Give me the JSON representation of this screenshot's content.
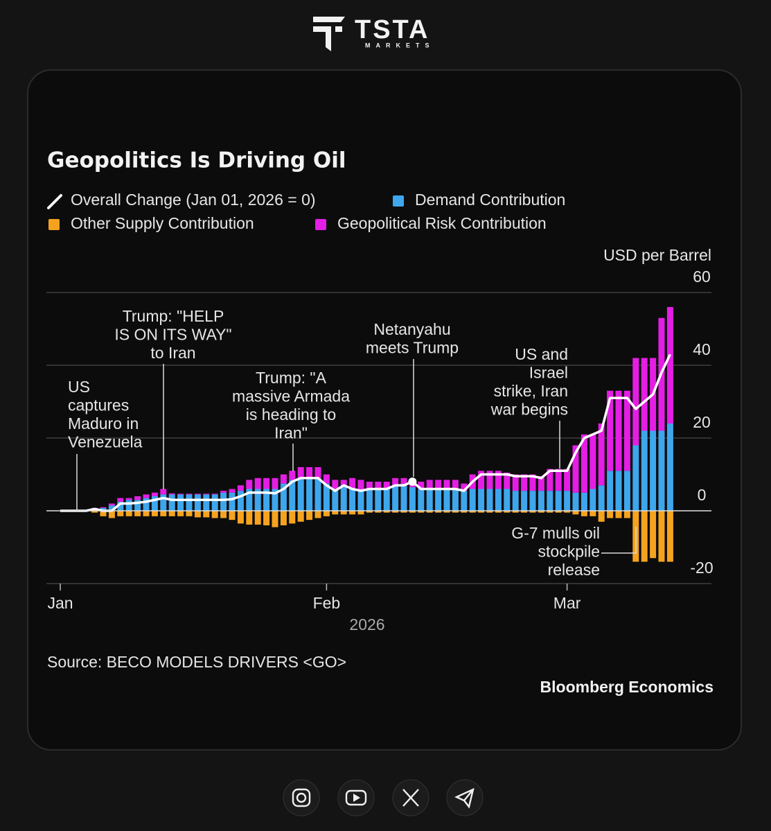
{
  "header": {
    "brand": "TSTA",
    "tagline": "MARKETS"
  },
  "chart_data": {
    "type": "bar",
    "title": "Geopolitics Is Driving Oil",
    "y_axis_label": "USD per Barrel",
    "x_axis_label": "2026",
    "source": "Source: BECO MODELS DRIVERS <GO>",
    "credit": "Bloomberg Economics",
    "stacked": true,
    "grid": true,
    "ylim": [
      -20,
      60
    ],
    "yticks": [
      -20,
      0,
      20,
      40,
      60
    ],
    "categories": [
      "Jan",
      null,
      null,
      null,
      null,
      null,
      null,
      null,
      null,
      null,
      null,
      null,
      null,
      null,
      null,
      null,
      null,
      null,
      null,
      null,
      null,
      null,
      null,
      null,
      null,
      null,
      null,
      null,
      null,
      null,
      null,
      "Feb",
      null,
      null,
      null,
      null,
      null,
      null,
      null,
      null,
      null,
      null,
      null,
      null,
      null,
      null,
      null,
      null,
      null,
      null,
      null,
      null,
      null,
      null,
      null,
      null,
      null,
      null,
      null,
      "Mar",
      null,
      null,
      null,
      null,
      null,
      null,
      null,
      null,
      null,
      null,
      null,
      null
    ],
    "series": [
      {
        "name": "Overall Change (Jan 01, 2026 = 0)",
        "type": "line",
        "color": "#ffffff",
        "values": [
          0,
          0,
          0,
          0,
          0.5,
          0,
          0,
          2,
          2,
          2.2,
          2.5,
          3,
          3.5,
          3,
          3,
          3,
          3,
          3,
          3,
          3,
          3.2,
          4,
          5,
          5,
          5,
          4.8,
          6,
          8,
          9,
          9,
          9,
          7,
          5.5,
          7,
          6,
          5.5,
          6,
          6,
          6,
          7,
          7,
          8,
          6,
          6,
          6,
          6,
          6,
          5.5,
          8,
          10,
          10,
          10,
          10,
          9.5,
          9.5,
          9.5,
          9,
          11,
          11,
          11,
          16,
          20,
          21,
          22,
          31,
          31,
          31,
          28,
          30,
          32,
          38,
          43
        ]
      },
      {
        "name": "Demand Contribution",
        "type": "bar",
        "color": "#3ea6ec",
        "values": [
          0,
          0,
          0,
          0,
          0.5,
          0.8,
          1.5,
          2.5,
          3,
          3,
          3.5,
          4,
          4.5,
          4.5,
          4.5,
          4.5,
          4.5,
          4.5,
          4.5,
          5,
          5,
          5.5,
          6,
          6,
          6,
          6,
          7.5,
          8.5,
          9,
          9,
          9,
          7.5,
          6,
          7,
          6,
          5.5,
          6,
          6,
          6,
          7,
          7,
          6.5,
          6,
          6,
          6,
          6,
          6,
          5.5,
          6,
          6,
          6,
          6,
          6,
          5.5,
          5.5,
          5.5,
          5.5,
          5.5,
          5.5,
          5.5,
          5,
          5,
          6,
          7,
          11,
          11,
          11,
          18,
          22,
          22,
          22,
          24
        ]
      },
      {
        "name": "Other Supply Contribution",
        "type": "bar",
        "color": "#f5a31f",
        "values": [
          0,
          0,
          0,
          0,
          -0.5,
          -1.5,
          -2,
          -1.5,
          -1.5,
          -1.5,
          -1.5,
          -1.5,
          -1.5,
          -1.5,
          -1.5,
          -1.5,
          -1.8,
          -1.8,
          -2,
          -2,
          -2.5,
          -3.5,
          -3.8,
          -3.8,
          -4,
          -4.5,
          -4,
          -3.5,
          -3,
          -2.5,
          -2,
          -1.5,
          -1,
          -1,
          -1,
          -1,
          -0.5,
          -0.5,
          -0.5,
          -0.5,
          -0.5,
          -0.5,
          -0.5,
          -0.5,
          -0.5,
          -0.5,
          -0.5,
          -0.5,
          -0.5,
          -0.5,
          -0.5,
          -0.5,
          -0.5,
          -0.5,
          -0.5,
          -0.5,
          -0.5,
          -0.5,
          -0.5,
          -0.5,
          -1,
          -1.5,
          -1.5,
          -3,
          -2,
          -2,
          -2,
          -14,
          -14,
          -13,
          -14,
          -14
        ]
      },
      {
        "name": "Geopolitical Risk Contribution",
        "type": "bar",
        "color": "#e41ee4",
        "values": [
          0,
          0,
          0,
          0,
          0.3,
          0.2,
          0.5,
          1,
          0.5,
          1,
          1,
          1,
          1.5,
          0.3,
          0.2,
          0.2,
          0.2,
          0.2,
          0.2,
          0.5,
          1,
          1.5,
          2.5,
          3,
          3,
          3,
          2.5,
          2.5,
          3,
          3,
          3,
          2.5,
          2.5,
          1.5,
          3,
          3,
          2,
          2,
          2,
          2,
          2,
          2,
          2,
          2.5,
          2.5,
          2.5,
          2.5,
          2,
          4,
          5,
          5,
          5,
          4.5,
          4.5,
          4.5,
          4.5,
          4,
          6,
          6,
          6,
          13,
          16,
          15,
          17,
          22,
          22,
          22,
          24,
          20,
          20,
          31,
          32
        ]
      }
    ],
    "annotations": [
      [
        "US",
        "captures",
        "Maduro in",
        "Venezuela"
      ],
      [
        "Trump: \"HELP",
        "IS ON ITS WAY\"",
        "to Iran"
      ],
      [
        "Trump: \"A",
        "massive Armada",
        "is heading to",
        "Iran\""
      ],
      [
        "Netanyahu",
        "meets Trump"
      ],
      [
        "US and",
        "Israel",
        "strike, Iran",
        "war begins"
      ],
      [
        "G-7 mulls oil",
        "stockpile",
        "release"
      ]
    ]
  }
}
